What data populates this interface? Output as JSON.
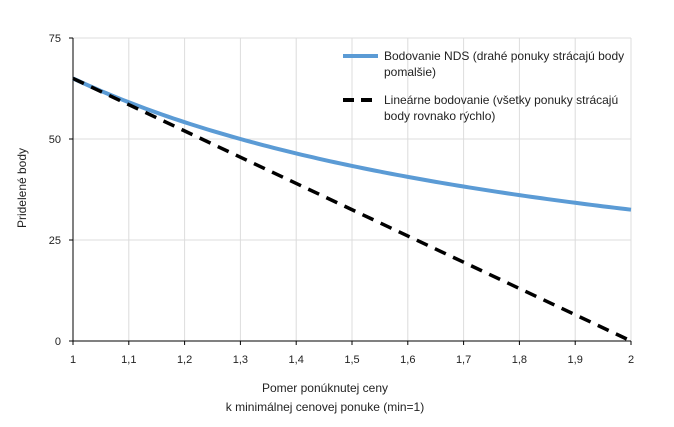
{
  "chart_data": {
    "type": "line",
    "xlabel": [
      "Pomer ponúknutej ceny",
      "k minimálnej cenovej ponuke (min=1)"
    ],
    "ylabel": "Pridelené body",
    "xlim": [
      1,
      2
    ],
    "ylim": [
      0,
      75
    ],
    "x_ticks": [
      1,
      1.1,
      1.2,
      1.3,
      1.4,
      1.5,
      1.6,
      1.7,
      1.8,
      1.9,
      2
    ],
    "x_tick_labels": [
      "1",
      "1,1",
      "1,2",
      "1,3",
      "1,4",
      "1,5",
      "1,6",
      "1,7",
      "1,8",
      "1,9",
      "2"
    ],
    "y_ticks": [
      0,
      25,
      50,
      75
    ],
    "y_tick_labels": [
      "0",
      "25",
      "50",
      "75"
    ],
    "grid": true,
    "legend_position": "top-right",
    "series": [
      {
        "name": "Bodovanie NDS (drahé ponuky strácajú body pomalšie)",
        "legend_lines": [
          "Bodovanie NDS (drahé ponuky strácajú body",
          "pomalšie)"
        ],
        "color": "#5b9bd5",
        "style": "solid",
        "x": [
          1,
          1.1,
          1.2,
          1.3,
          1.4,
          1.5,
          1.6,
          1.7,
          1.8,
          1.9,
          2
        ],
        "values": [
          65,
          59.1,
          54.2,
          50,
          46.4,
          43.3,
          40.6,
          38.2,
          36.1,
          34.2,
          32.5
        ]
      },
      {
        "name": "Lineárne bodovanie (všetky ponuky strácajú body rovnako rýchlo)",
        "legend_lines": [
          "Lineárne bodovanie (všetky ponuky strácajú",
          "body rovnako rýchlo)"
        ],
        "color": "#000000",
        "style": "dashed",
        "x": [
          1,
          2
        ],
        "values": [
          65,
          0
        ]
      }
    ]
  }
}
